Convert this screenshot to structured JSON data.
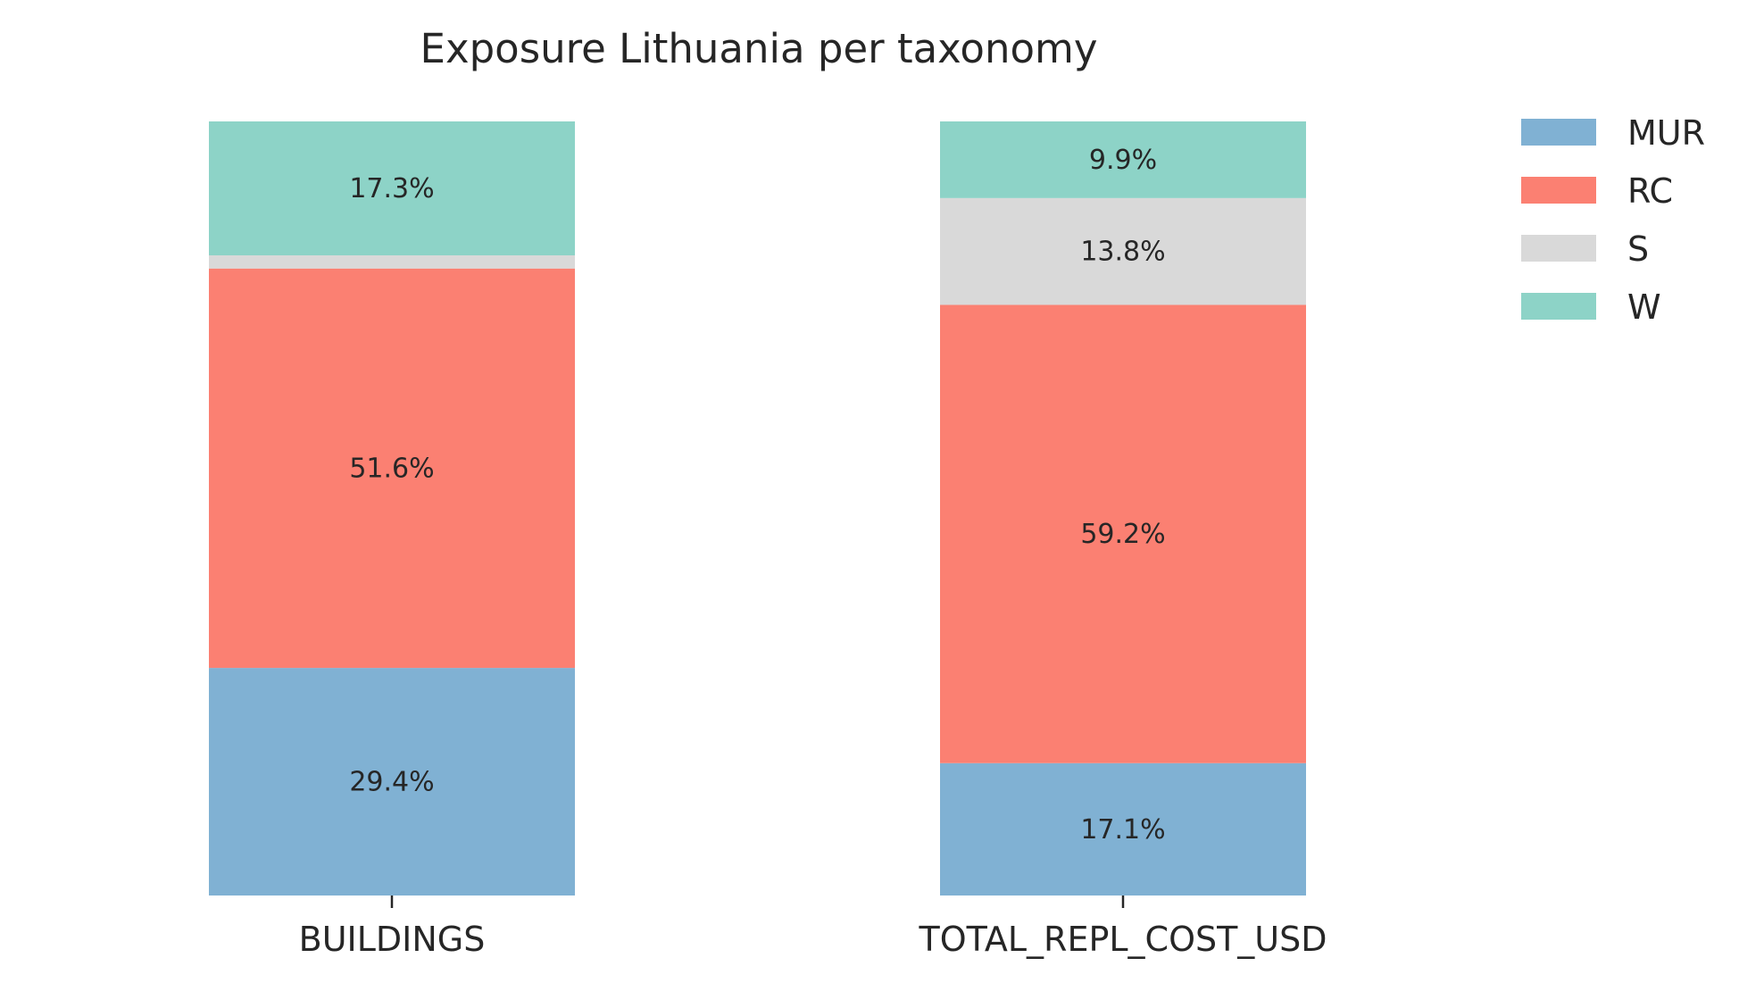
{
  "chart_data": {
    "type": "bar",
    "stacked": true,
    "title": "Exposure Lithuania per taxonomy",
    "xlabel": "",
    "ylabel": "",
    "categories": [
      "BUILDINGS",
      "TOTAL_REPL_COST_USD"
    ],
    "ylim": [
      0,
      100
    ],
    "unit": "%",
    "grid": false,
    "legend_position": "top-right",
    "series": [
      {
        "name": "MUR",
        "color": "#80b1d3",
        "values": [
          29.4,
          17.1
        ]
      },
      {
        "name": "RC",
        "color": "#fb8072",
        "values": [
          51.6,
          59.2
        ]
      },
      {
        "name": "S",
        "color": "#d9d9d9",
        "values": [
          1.7,
          13.8
        ]
      },
      {
        "name": "W",
        "color": "#8dd3c7",
        "values": [
          17.3,
          9.9
        ]
      }
    ],
    "data_labels": [
      [
        "29.4%",
        "17.1%"
      ],
      [
        "51.6%",
        "59.2%"
      ],
      [
        "",
        "13.8%"
      ],
      [
        "17.3%",
        "9.9%"
      ]
    ]
  }
}
